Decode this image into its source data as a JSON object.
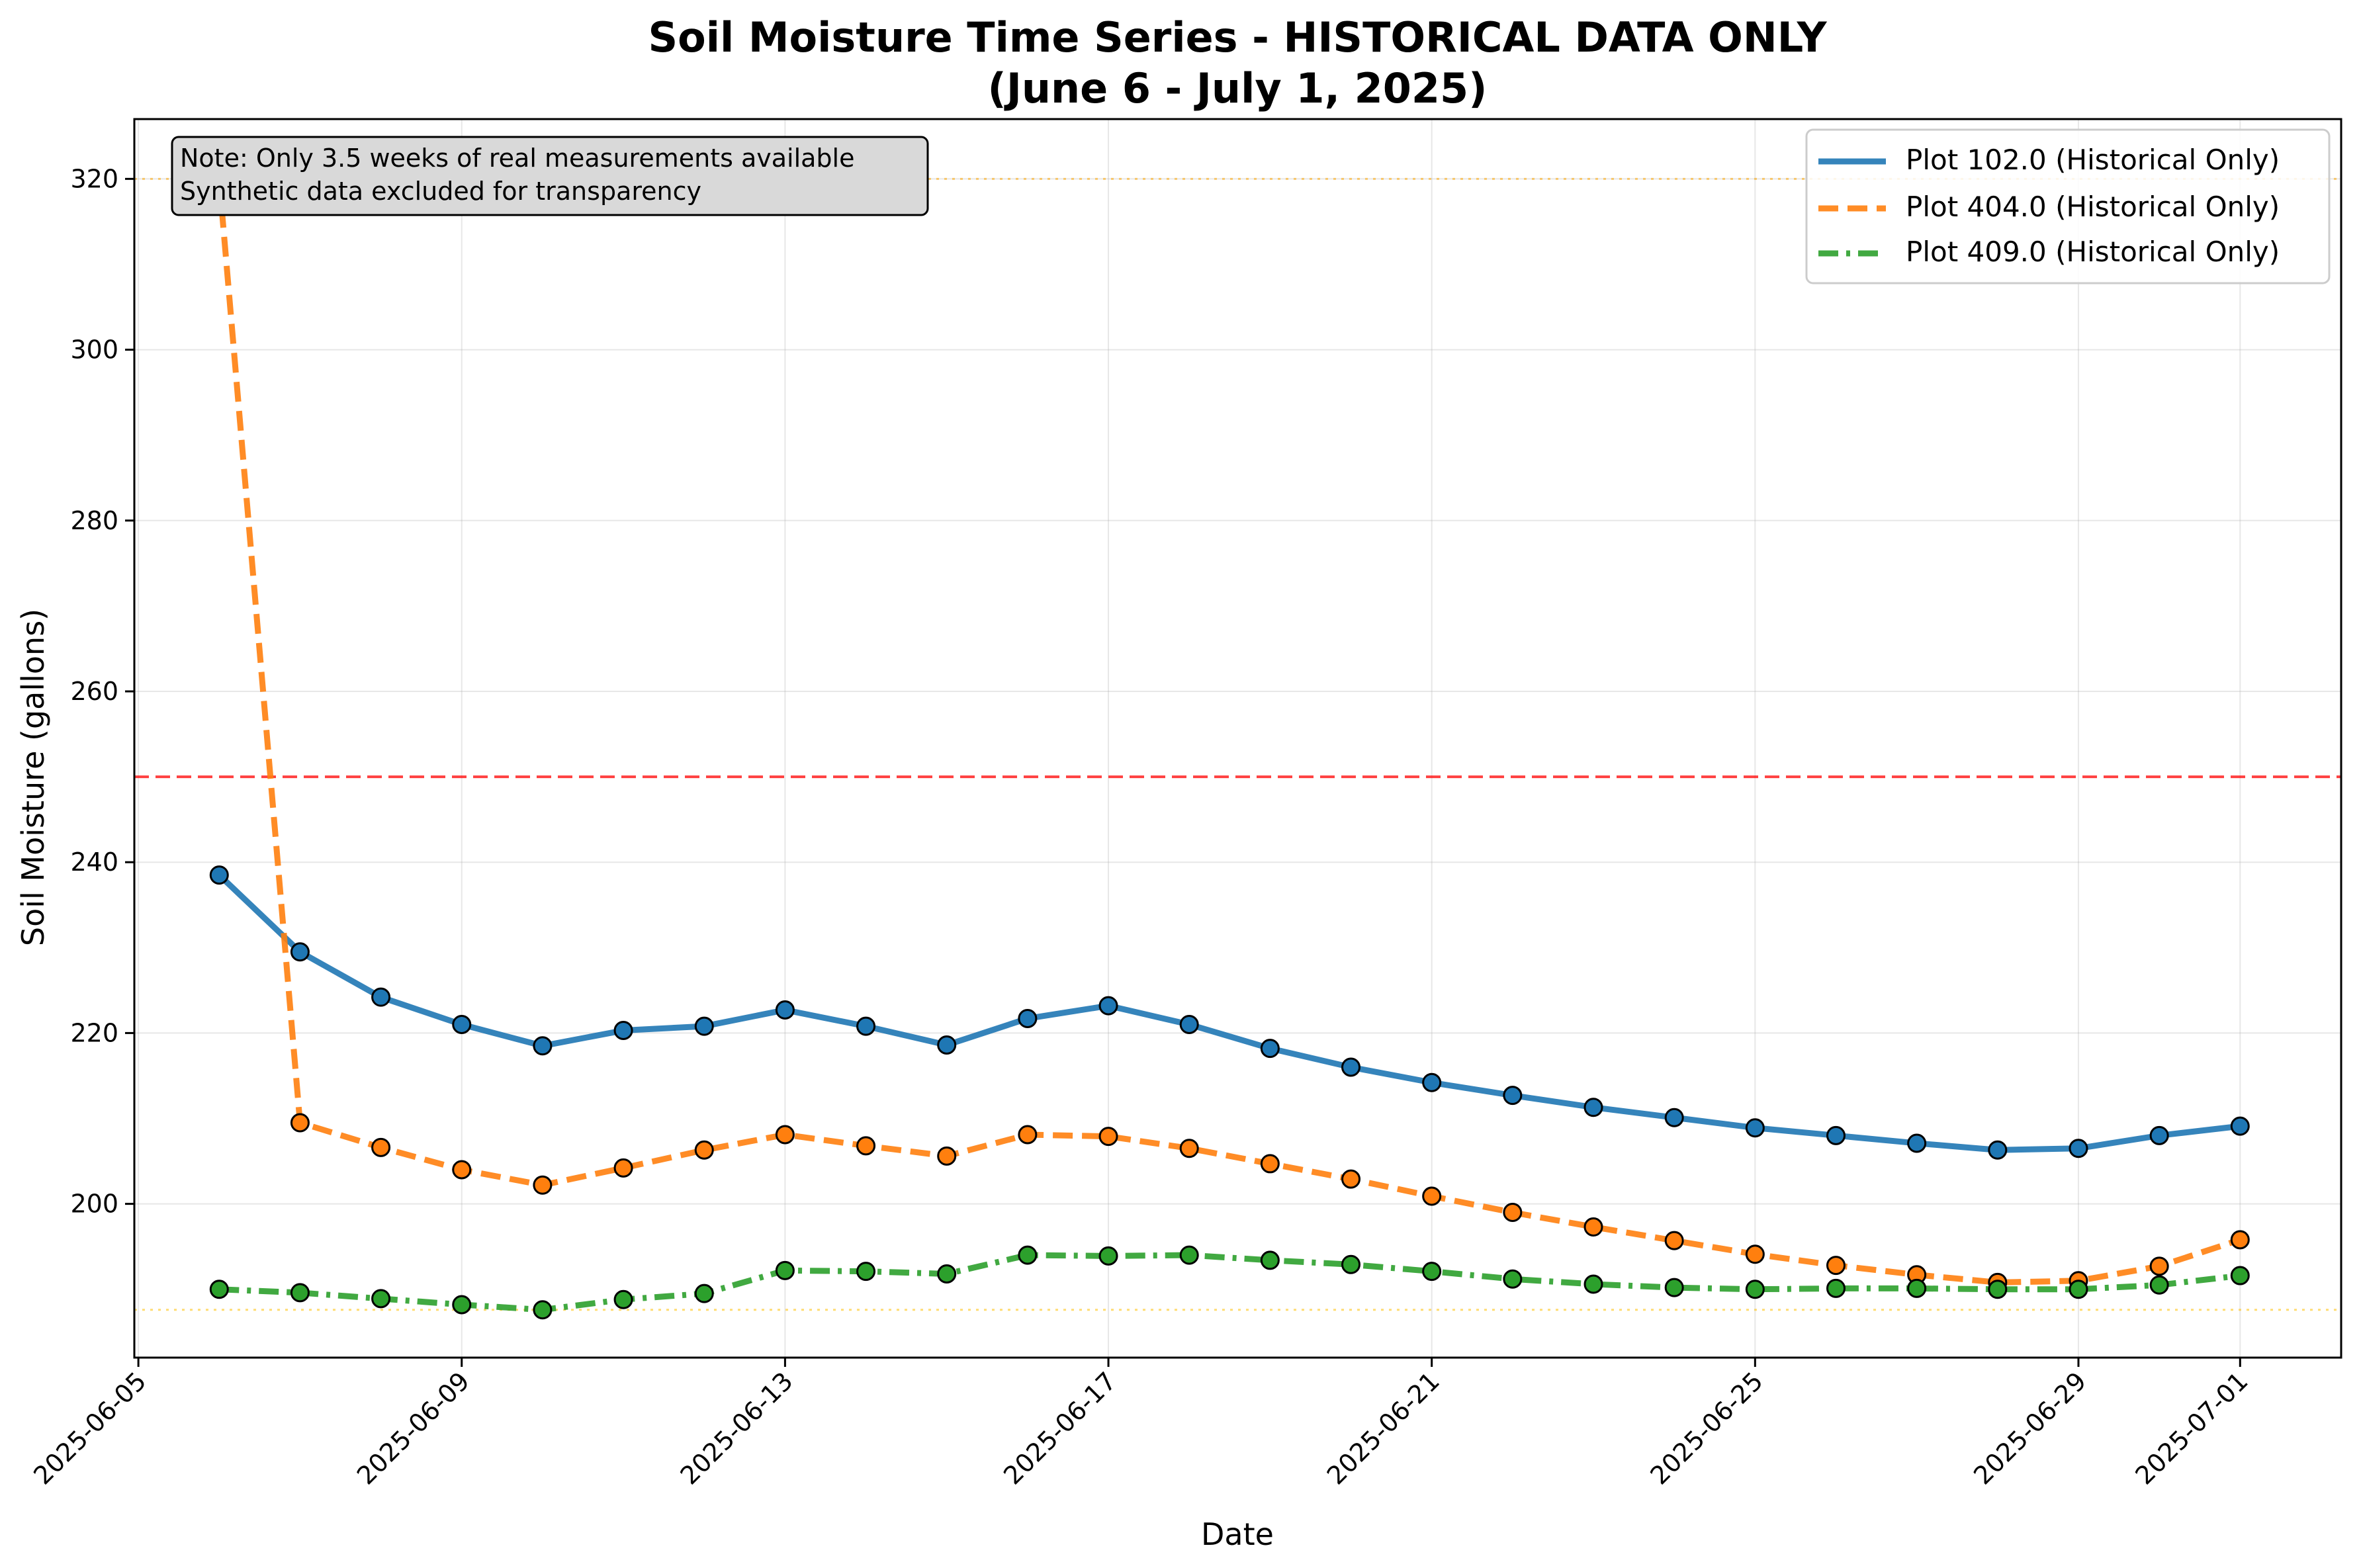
{
  "chart_data": {
    "type": "line",
    "title": "Soil Moisture Time Series - HISTORICAL DATA ONLY",
    "subtitle": "(June 6 - July 1, 2025)",
    "xlabel": "Date",
    "ylabel": "Soil Moisture (gallons)",
    "xlim": [
      "2025-06-05",
      "2025-07-02"
    ],
    "ylim": [
      182,
      327
    ],
    "x_ticks": [
      "2025-06-05",
      "2025-06-09",
      "2025-06-13",
      "2025-06-17",
      "2025-06-21",
      "2025-06-25",
      "2025-06-29",
      "2025-07-01"
    ],
    "y_ticks": [
      200,
      220,
      240,
      260,
      280,
      300,
      320
    ],
    "grid": true,
    "legend_position": "top-right",
    "x": [
      "2025-06-06",
      "2025-06-07",
      "2025-06-08",
      "2025-06-09",
      "2025-06-10",
      "2025-06-11",
      "2025-06-12",
      "2025-06-13",
      "2025-06-14",
      "2025-06-15",
      "2025-06-16",
      "2025-06-17",
      "2025-06-18",
      "2025-06-19",
      "2025-06-20",
      "2025-06-21",
      "2025-06-22",
      "2025-06-23",
      "2025-06-24",
      "2025-06-25",
      "2025-06-26",
      "2025-06-27",
      "2025-06-28",
      "2025-06-29",
      "2025-06-30",
      "2025-07-01"
    ],
    "series": [
      {
        "name": "Plot 102.0 (Historical Only)",
        "color": "#1f77b4",
        "line_style": "solid",
        "values": [
          238.5,
          229.5,
          224.2,
          221.0,
          218.5,
          220.3,
          220.8,
          222.7,
          220.8,
          218.6,
          221.7,
          223.2,
          221.0,
          218.2,
          216.0,
          214.2,
          212.7,
          211.3,
          210.1,
          208.9,
          208.0,
          207.1,
          206.3,
          206.5,
          208.0,
          209.1
        ]
      },
      {
        "name": "Plot 404.0 (Historical Only)",
        "color": "#ff7f0e",
        "line_style": "dashed",
        "values": [
          320.0,
          209.5,
          206.6,
          204.0,
          202.2,
          204.2,
          206.3,
          208.1,
          206.8,
          205.6,
          208.1,
          207.9,
          206.5,
          204.7,
          202.9,
          200.9,
          199.0,
          197.3,
          195.7,
          194.1,
          192.8,
          191.7,
          190.8,
          191.0,
          192.7,
          195.8
        ]
      },
      {
        "name": "Plot 409.0 (Historical Only)",
        "color": "#2ca02c",
        "line_style": "dash-dot",
        "values": [
          190.0,
          189.6,
          188.9,
          188.2,
          187.6,
          188.8,
          189.5,
          192.2,
          192.1,
          191.8,
          194.0,
          193.9,
          194.0,
          193.4,
          192.9,
          192.1,
          191.2,
          190.6,
          190.2,
          190.0,
          190.1,
          190.1,
          190.0,
          190.0,
          190.5,
          191.6
        ]
      }
    ],
    "reference_lines": [
      {
        "y": 250,
        "color": "#ff0000",
        "style": "dashed"
      },
      {
        "y": 320,
        "color": "#ffa500",
        "style": "dotted"
      },
      {
        "y": 187.6,
        "color": "#ffc000",
        "style": "dotted"
      }
    ],
    "annotation": {
      "lines": [
        "Note: Only 3.5 weeks of real measurements available",
        "Synthetic data excluded for transparency"
      ],
      "position": "top-left"
    }
  }
}
